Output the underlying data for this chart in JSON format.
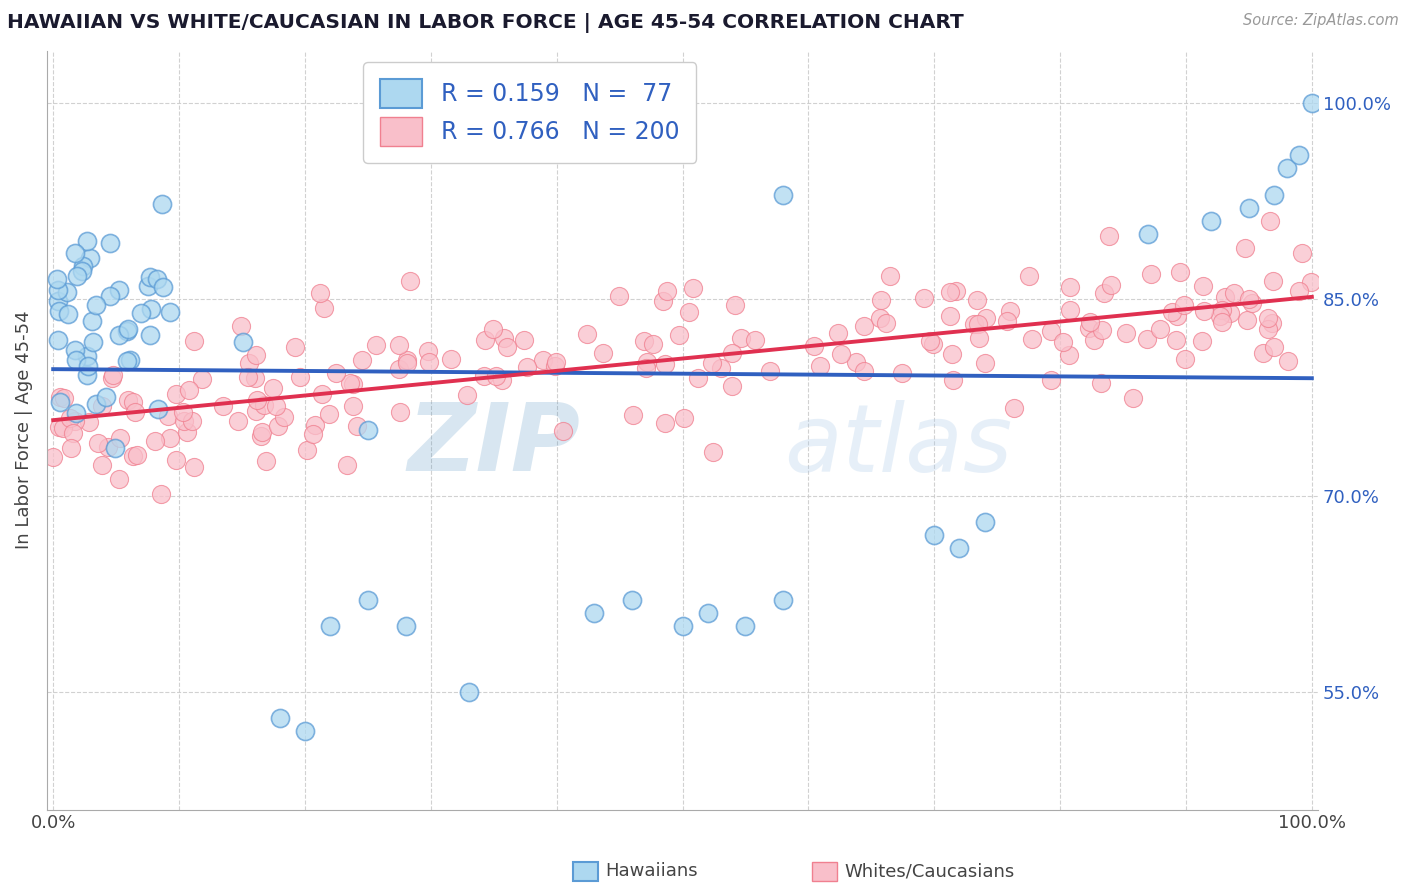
{
  "title": "HAWAIIAN VS WHITE/CAUCASIAN IN LABOR FORCE | AGE 45-54 CORRELATION CHART",
  "source_text": "Source: ZipAtlas.com",
  "ylabel": "In Labor Force | Age 45-54",
  "hawaiian_R": 0.159,
  "hawaiian_N": 77,
  "white_R": 0.766,
  "white_N": 200,
  "hawaiian_color": "#add8f0",
  "hawaiian_edge_color": "#5b9bd5",
  "white_color": "#f9bfca",
  "white_edge_color": "#f08090",
  "hawaiian_line_color": "#3060c0",
  "white_line_color": "#e03050",
  "legend_label_hawaiian": "Hawaiians",
  "legend_label_white": "Whites/Caucasians",
  "watermark_zip": "ZIP",
  "watermark_atlas": "atlas",
  "background_color": "#ffffff",
  "ylim_low": 0.46,
  "ylim_high": 1.04,
  "y_ticks": [
    0.55,
    0.7,
    0.85,
    1.0
  ],
  "y_tick_labels": [
    "55.0%",
    "70.0%",
    "85.0%",
    "100.0%"
  ],
  "x_tick_labels": [
    "0.0%",
    "",
    "",
    "",
    "",
    "",
    "",
    "",
    "",
    "",
    "100.0%"
  ],
  "seed": 7
}
